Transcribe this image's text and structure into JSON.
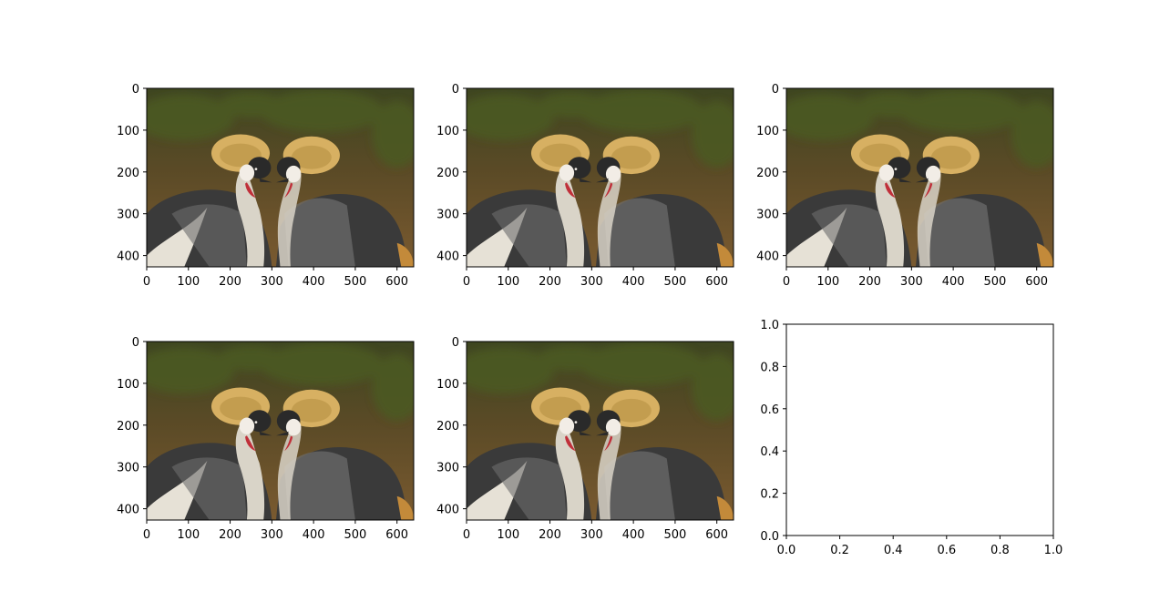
{
  "figure": {
    "background": "#ffffff",
    "axes_color": "#000000"
  },
  "chart_data": [
    {
      "type": "image",
      "panel": "row1-col1",
      "xlim": [
        0,
        640
      ],
      "ylim": [
        427,
        0
      ],
      "xticks": [
        0,
        100,
        200,
        300,
        400,
        500,
        600
      ],
      "yticks": [
        0,
        100,
        200,
        300,
        400
      ],
      "content": "photo"
    },
    {
      "type": "image",
      "panel": "row1-col2",
      "xlim": [
        0,
        640
      ],
      "ylim": [
        427,
        0
      ],
      "xticks": [
        0,
        100,
        200,
        300,
        400,
        500,
        600
      ],
      "yticks": [
        0,
        100,
        200,
        300,
        400
      ],
      "content": "photo"
    },
    {
      "type": "image",
      "panel": "row1-col3",
      "xlim": [
        0,
        640
      ],
      "ylim": [
        427,
        0
      ],
      "xticks": [
        0,
        100,
        200,
        300,
        400,
        500,
        600
      ],
      "yticks": [
        0,
        100,
        200,
        300,
        400
      ],
      "content": "photo"
    },
    {
      "type": "image",
      "panel": "row2-col1",
      "xlim": [
        0,
        640
      ],
      "ylim": [
        427,
        0
      ],
      "xticks": [
        0,
        100,
        200,
        300,
        400,
        500,
        600
      ],
      "yticks": [
        0,
        100,
        200,
        300,
        400
      ],
      "content": "photo"
    },
    {
      "type": "image",
      "panel": "row2-col2",
      "xlim": [
        0,
        640
      ],
      "ylim": [
        427,
        0
      ],
      "xticks": [
        0,
        100,
        200,
        300,
        400,
        500,
        600
      ],
      "yticks": [
        0,
        100,
        200,
        300,
        400
      ],
      "content": "photo"
    },
    {
      "type": "empty",
      "panel": "row2-col3",
      "xlim": [
        0,
        1
      ],
      "ylim": [
        0,
        1
      ],
      "xticks": [
        0.0,
        0.2,
        0.4,
        0.6,
        0.8,
        1.0
      ],
      "yticks": [
        0.0,
        0.2,
        0.4,
        0.6,
        0.8,
        1.0
      ],
      "tick_format": "0.0"
    }
  ],
  "photo_palette": {
    "bg_top": "#3e4621",
    "bg_mid": "#5a4a26",
    "bg_bottom": "#7a5a30",
    "foliage": "#4c5a24",
    "crest": "#d7b062",
    "crest_dark": "#b08a3c",
    "body_dark": "#3a3a3a",
    "body_gray": "#6d6d6d",
    "neck_light": "#d9d4c8",
    "wing_white": "#e6e1d6",
    "face_white": "#f2ede6",
    "wattle_red": "#c0303a",
    "beak": "#2a2a2a",
    "tail_gold": "#c38a3a"
  }
}
